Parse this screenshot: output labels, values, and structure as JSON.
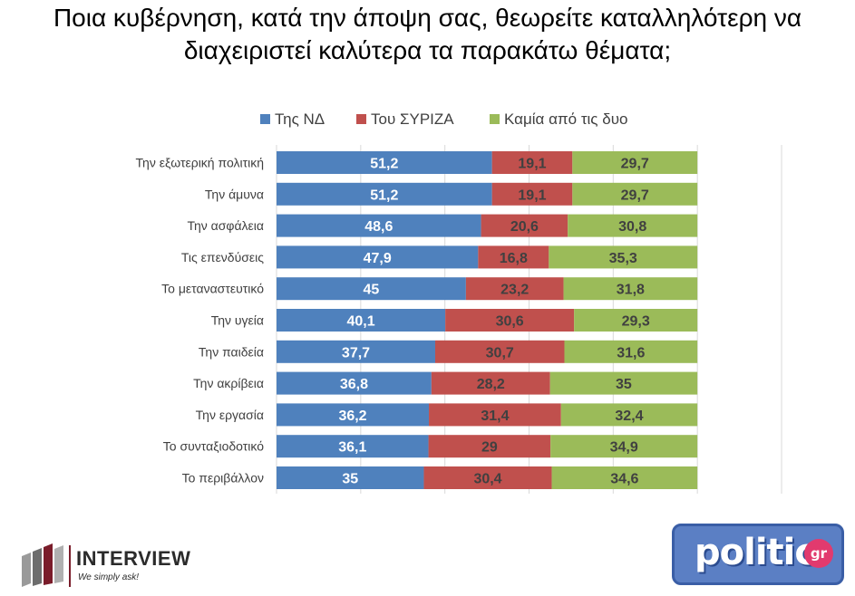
{
  "title_lines": [
    "Ποια κυβέρνηση, κατά την άποψη σας, θεωρείτε καταλληλότερη να",
    "διαχειριστεί καλύτερα τα παρακάτω θέματα;"
  ],
  "chart_data": {
    "type": "bar",
    "orientation": "horizontal",
    "stacked": true,
    "categories": [
      "Την εξωτερική πολιτική",
      "Την άμυνα",
      "Την ασφάλεια",
      "Τις επενδύσεις",
      "Το μεταναστευτικό",
      "Την υγεία",
      "Την παιδεία",
      "Την ακρίβεια",
      "Την εργασία",
      "Το συνταξιοδοτικό",
      "Το περιβάλλον"
    ],
    "series": [
      {
        "name": "Της ΝΔ",
        "color": "#4f81bd",
        "label_color": "#ffffff",
        "values": [
          51.2,
          51.2,
          48.6,
          47.9,
          45,
          40.1,
          37.7,
          36.8,
          36.2,
          36.1,
          35
        ],
        "labels": [
          "51,2",
          "51,2",
          "48,6",
          "47,9",
          "45",
          "40,1",
          "37,7",
          "36,8",
          "36,2",
          "36,1",
          "35"
        ]
      },
      {
        "name": "Του ΣΥΡΙΖΑ",
        "color": "#c0504d",
        "label_color": "#404040",
        "values": [
          19.1,
          19.1,
          20.6,
          16.8,
          23.2,
          30.6,
          30.7,
          28.2,
          31.4,
          29,
          30.4
        ],
        "labels": [
          "19,1",
          "19,1",
          "20,6",
          "16,8",
          "23,2",
          "30,6",
          "30,7",
          "28,2",
          "31,4",
          "29",
          "30,4"
        ]
      },
      {
        "name": "Καμία από τις δυο",
        "color": "#9bbb59",
        "label_color": "#404040",
        "values": [
          29.7,
          29.7,
          30.8,
          35.3,
          31.8,
          29.3,
          31.6,
          35,
          32.4,
          34.9,
          34.6
        ],
        "labels": [
          "29,7",
          "29,7",
          "30,8",
          "35,3",
          "31,8",
          "29,3",
          "31,6",
          "35",
          "32,4",
          "34,9",
          "34,6"
        ]
      }
    ],
    "xlim": [
      0,
      120
    ],
    "grid": true,
    "legend_position": "top"
  },
  "logos": {
    "interview": {
      "name": "INTERVIEW",
      "tagline": "We simply ask!"
    },
    "politic": {
      "name": "politic",
      "badge": "gr"
    }
  }
}
